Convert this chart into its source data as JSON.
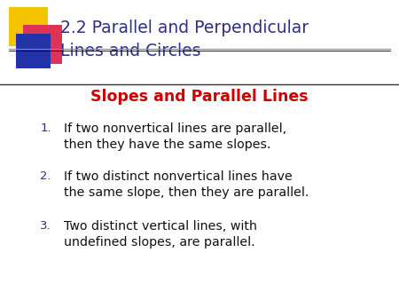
{
  "title_line1": "2.2 Parallel and Perpendicular",
  "title_line2": "Lines and Circles",
  "title_color": "#2E2E8B",
  "subtitle": "Slopes and Parallel Lines",
  "subtitle_color": "#CC0000",
  "items": [
    "If two nonvertical lines are parallel,\nthen they have the same slopes.",
    "If two distinct nonvertical lines have\nthe same slope, then they are parallel.",
    "Two distinct vertical lines, with\nundefined slopes, are parallel."
  ],
  "number_color": "#2E2E8B",
  "item_color": "#111111",
  "background_color": "#FFFFFF",
  "divider_color": "#000000",
  "square_yellow": "#F5C400",
  "square_red": "#DD3355",
  "square_blue": "#2233AA",
  "title_fontsize": 13.5,
  "subtitle_fontsize": 12.5,
  "item_fontsize": 10.2,
  "number_fontsize": 9.5
}
